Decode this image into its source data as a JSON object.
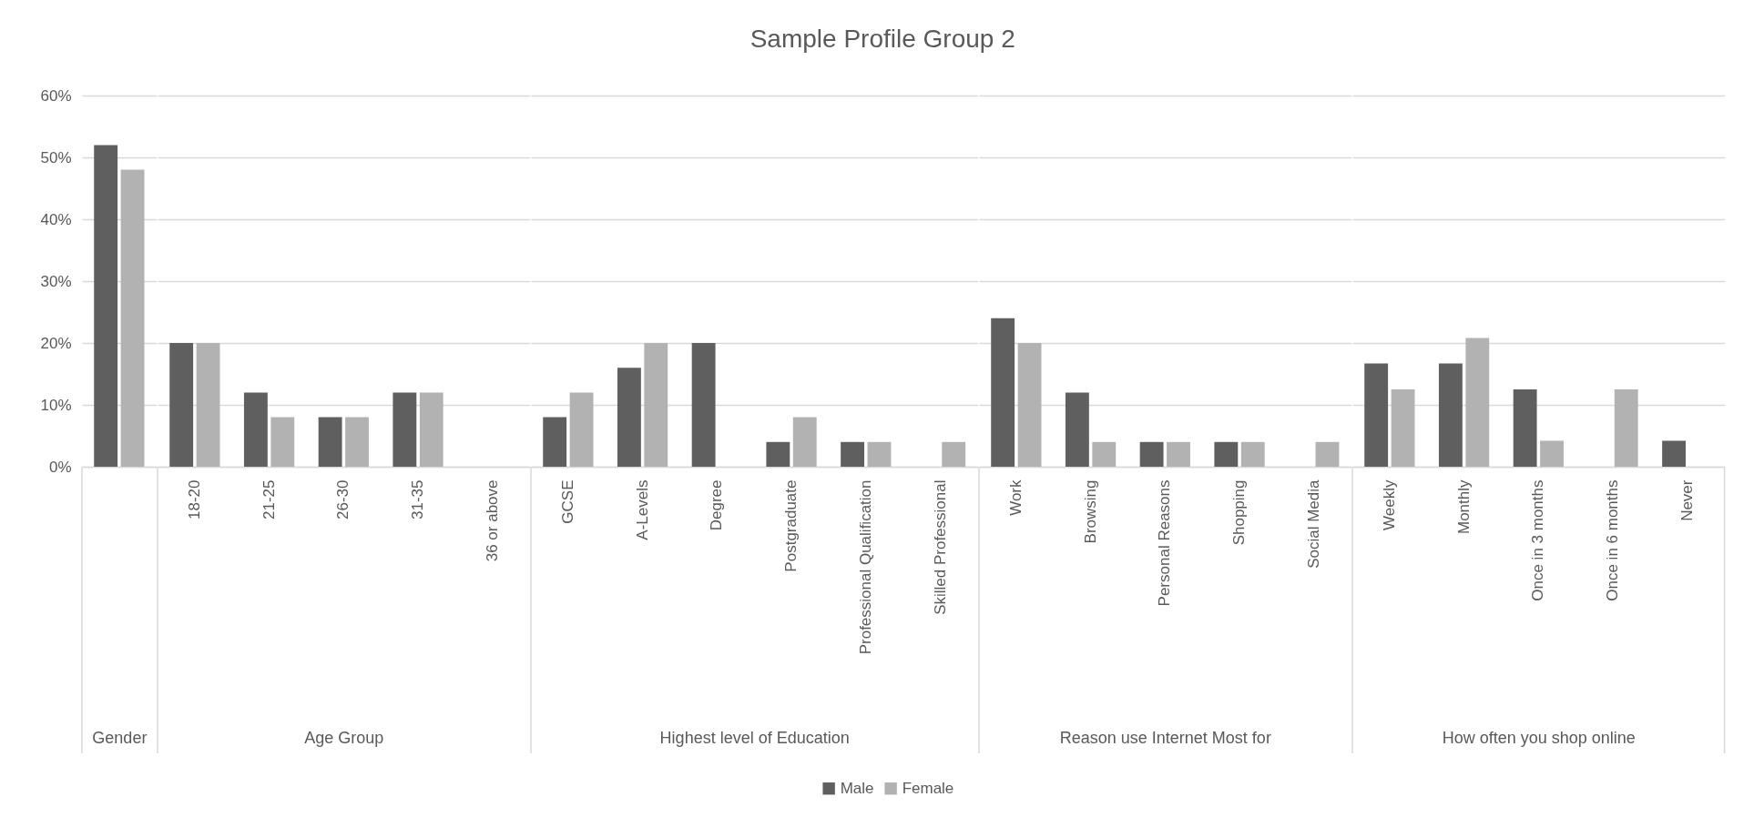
{
  "chart_data": [
    {
      "type": "bar",
      "xlabel": "Gender",
      "categories": [
        null
      ],
      "series": [
        {
          "color": "#5f5f5f",
          "values": [
            52
          ]
        },
        {
          "color": "#b2b2b2",
          "values": [
            48
          ]
        }
      ],
      "ylim": [
        0,
        60
      ],
      "yticks": [
        {
          "value": 0,
          "label": "0%"
        },
        {
          "value": 10,
          "label": "10%"
        },
        {
          "value": 20,
          "label": "20%"
        },
        {
          "value": 30,
          "label": "30%"
        },
        {
          "value": 40,
          "label": "40%"
        },
        {
          "value": 50,
          "label": "50%"
        },
        {
          "value": 60,
          "label": "60%"
        }
      ],
      "grid": "y"
    },
    {
      "type": "bar",
      "xlabel": "Age Group",
      "categories": [
        "18-20",
        "21-25",
        "26-30",
        "31-35",
        "36 or above"
      ],
      "series": [
        {
          "color": "#5f5f5f",
          "values": [
            20,
            12,
            8,
            12,
            null
          ]
        },
        {
          "color": "#b2b2b2",
          "values": [
            20,
            8,
            8,
            12,
            null
          ]
        }
      ],
      "ylim": [
        0,
        60
      ],
      "yticks": [
        0,
        10,
        20,
        30,
        40,
        50,
        60
      ],
      "grid": "y",
      "tick_labels": "x"
    },
    {
      "type": "bar",
      "title": "Sample Profile Group 2",
      "xlabel": "Highest level of Education",
      "categories": [
        "GCSE",
        "A-Levels",
        "Degree",
        "Postgraduate",
        "Professional Qualification",
        "Skilled Professional"
      ],
      "series": [
        {
          "name": "Male",
          "color": "#5f5f5f",
          "values": [
            8,
            16,
            20,
            4,
            4,
            null
          ]
        },
        {
          "name": "Female",
          "color": "#b2b2b2",
          "values": [
            12,
            20,
            null,
            8,
            4,
            4
          ]
        }
      ],
      "ylim": [
        0,
        60
      ],
      "yticks": [
        0,
        10,
        20,
        30,
        40,
        50,
        60
      ],
      "grid": "y",
      "legend": "bottom",
      "tick_labels": "x"
    },
    {
      "type": "bar",
      "xlabel": "Reason use Internet Most for",
      "categories": [
        "Work",
        "Browsing",
        "Personal Reasons",
        "Shopping",
        "Social Media"
      ],
      "series": [
        {
          "color": "#5f5f5f",
          "values": [
            24,
            12,
            4,
            4,
            null
          ]
        },
        {
          "color": "#b2b2b2",
          "values": [
            20,
            4,
            4,
            4,
            4
          ]
        }
      ],
      "ylim": [
        0,
        60
      ],
      "yticks": [
        0,
        10,
        20,
        30,
        40,
        50,
        60
      ],
      "grid": "y",
      "tick_labels": "x"
    },
    {
      "type": "bar",
      "xlabel": "How often you shop online",
      "categories": [
        "Weekly",
        "Monthly",
        "Once in 3 months",
        "Once in 6 months",
        "Never"
      ],
      "series": [
        {
          "color": "#5f5f5f",
          "values": [
            16.7,
            16.7,
            12.5,
            null,
            4.2
          ]
        },
        {
          "color": "#b2b2b2",
          "values": [
            12.5,
            20.8,
            4.2,
            12.5,
            null
          ]
        }
      ],
      "ylim": [
        0,
        60
      ],
      "yticks": [
        0,
        10,
        20,
        30,
        40,
        50,
        60
      ],
      "grid": "y",
      "tick_labels": "x"
    }
  ]
}
